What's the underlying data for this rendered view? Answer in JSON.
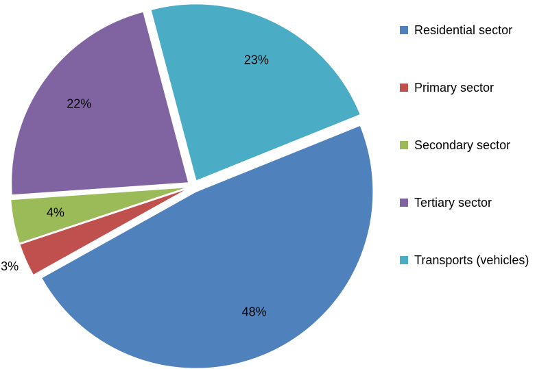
{
  "chart_data": {
    "type": "pie",
    "categories": [
      "Residential sector",
      "Primary sector",
      "Secondary sector",
      "Tertiary sector",
      "Transports (vehicles)"
    ],
    "values": [
      48,
      3,
      4,
      22,
      23
    ],
    "value_labels": [
      "48%",
      "3%",
      "4%",
      "22%",
      "23%"
    ],
    "colors": [
      "#4f81bd",
      "#c0504d",
      "#9bbb59",
      "#8064a2",
      "#4bacc6"
    ],
    "legend": "right"
  }
}
